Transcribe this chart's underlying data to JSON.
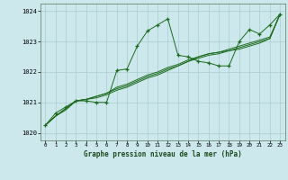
{
  "title": "Graphe pression niveau de la mer (hPa)",
  "bg_color": "#cce8ed",
  "grid_color": "#aacccc",
  "line_color": "#1a6b1a",
  "xlim": [
    -0.5,
    23.5
  ],
  "ylim": [
    1019.75,
    1024.25
  ],
  "yticks": [
    1020,
    1021,
    1022,
    1023,
    1024
  ],
  "xticks": [
    0,
    1,
    2,
    3,
    4,
    5,
    6,
    7,
    8,
    9,
    10,
    11,
    12,
    13,
    14,
    15,
    16,
    17,
    18,
    19,
    20,
    21,
    22,
    23
  ],
  "series1_x": [
    0,
    1,
    2,
    3,
    4,
    5,
    6,
    7,
    8,
    9,
    10,
    11,
    12,
    13,
    14,
    15,
    16,
    17,
    18,
    19,
    20,
    21,
    22,
    23
  ],
  "series1_y": [
    1020.25,
    1020.65,
    1020.85,
    1021.05,
    1021.05,
    1021.0,
    1021.0,
    1022.05,
    1022.1,
    1022.85,
    1023.35,
    1023.55,
    1023.75,
    1022.55,
    1022.5,
    1022.35,
    1022.3,
    1022.2,
    1022.2,
    1023.0,
    1023.4,
    1023.25,
    1023.55,
    1023.9
  ],
  "series2_x": [
    0,
    1,
    2,
    3,
    4,
    5,
    6,
    7,
    8,
    9,
    10,
    11,
    12,
    13,
    14,
    15,
    16,
    17,
    18,
    19,
    20,
    21,
    22,
    23
  ],
  "series2_y": [
    1020.25,
    1020.55,
    1020.75,
    1021.05,
    1021.1,
    1021.15,
    1021.25,
    1021.4,
    1021.5,
    1021.65,
    1021.8,
    1021.9,
    1022.05,
    1022.2,
    1022.35,
    1022.45,
    1022.55,
    1022.6,
    1022.7,
    1022.75,
    1022.85,
    1022.95,
    1023.1,
    1023.9
  ],
  "series3_x": [
    0,
    1,
    2,
    3,
    4,
    5,
    6,
    7,
    8,
    9,
    10,
    11,
    12,
    13,
    14,
    15,
    16,
    17,
    18,
    19,
    20,
    21,
    22,
    23
  ],
  "series3_y": [
    1020.25,
    1020.55,
    1020.8,
    1021.05,
    1021.1,
    1021.2,
    1021.3,
    1021.45,
    1021.55,
    1021.7,
    1021.85,
    1021.95,
    1022.1,
    1022.2,
    1022.35,
    1022.5,
    1022.6,
    1022.65,
    1022.7,
    1022.8,
    1022.9,
    1023.0,
    1023.1,
    1023.9
  ],
  "series4_x": [
    0,
    1,
    2,
    3,
    4,
    5,
    6,
    7,
    8,
    9,
    10,
    11,
    12,
    13,
    14,
    15,
    16,
    17,
    18,
    19,
    20,
    21,
    22,
    23
  ],
  "series4_y": [
    1020.25,
    1020.55,
    1020.8,
    1021.05,
    1021.1,
    1021.2,
    1021.3,
    1021.5,
    1021.6,
    1021.75,
    1021.9,
    1022.0,
    1022.15,
    1022.25,
    1022.4,
    1022.5,
    1022.6,
    1022.65,
    1022.75,
    1022.85,
    1022.95,
    1023.05,
    1023.15,
    1023.9
  ]
}
